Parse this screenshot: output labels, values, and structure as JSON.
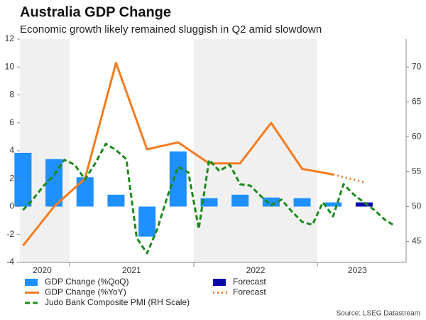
{
  "chart_data": {
    "type": "combo",
    "title": "Australia GDP Change",
    "subtitle": "Economic growth likely remained sluggish in Q2 amid slowdown",
    "source": "Source: LSEG Datastream",
    "xlim": [
      2020.6,
      2023.713
    ],
    "xticks": [
      {
        "value": 2020.78,
        "label": "2020"
      },
      {
        "value": 2021.5,
        "label": "2021"
      },
      {
        "value": 2022.5,
        "label": "2022"
      },
      {
        "value": 2023.32,
        "label": "2023"
      }
    ],
    "ylim": [
      -4,
      12
    ],
    "yticks": [
      -4,
      -2,
      0,
      2,
      4,
      6,
      8,
      10,
      12
    ],
    "y2lim": [
      42,
      74
    ],
    "y2ticks": [
      45,
      50,
      55,
      60,
      65,
      70
    ],
    "series": [
      {
        "name": "GDP Change (%QoQ)",
        "type": "bar",
        "color": "#1e90ff",
        "x": [
          2020.625,
          2020.875,
          2021.125,
          2021.375,
          2021.625,
          2021.875,
          2022.125,
          2022.375,
          2022.625,
          2022.875,
          2023.125
        ],
        "values": [
          3.85,
          3.4,
          2.1,
          0.85,
          -2.15,
          3.95,
          0.6,
          0.85,
          0.65,
          0.6,
          0.3
        ]
      },
      {
        "name": "Forecast",
        "type": "bar",
        "color": "#0a0aaa",
        "x": [
          2023.375
        ],
        "values": [
          0.3
        ]
      },
      {
        "name": "GDP Change (%YoY)",
        "type": "line",
        "style": "solid",
        "color": "#f47b20",
        "x": [
          2020.625,
          2020.875,
          2021.125,
          2021.375,
          2021.625,
          2021.875,
          2022.125,
          2022.375,
          2022.625,
          2022.875,
          2023.125
        ],
        "values": [
          -2.8,
          0.0,
          2.0,
          10.3,
          4.1,
          4.6,
          3.1,
          3.1,
          6.0,
          2.7,
          2.3
        ]
      },
      {
        "name": "Forecast",
        "type": "line",
        "style": "dotted",
        "color": "#f47b20",
        "x": [
          2023.125,
          2023.375
        ],
        "values": [
          2.3,
          1.75
        ]
      },
      {
        "name": "Judo Bank Composite PMI (RH Scale)",
        "type": "line",
        "style": "dashed",
        "color": "#1a8a1a",
        "axis": "y2",
        "x": [
          2020.625,
          2020.708,
          2020.792,
          2020.875,
          2020.958,
          2021.042,
          2021.125,
          2021.208,
          2021.292,
          2021.375,
          2021.458,
          2021.542,
          2021.625,
          2021.708,
          2021.792,
          2021.875,
          2021.958,
          2022.042,
          2022.125,
          2022.208,
          2022.292,
          2022.375,
          2022.458,
          2022.542,
          2022.625,
          2022.708,
          2022.792,
          2022.875,
          2022.958,
          2023.042,
          2023.125,
          2023.208,
          2023.292,
          2023.375,
          2023.458,
          2023.542,
          2023.625
        ],
        "values": [
          49.5,
          51.1,
          53.0,
          54.5,
          56.7,
          56.0,
          53.9,
          56.2,
          59.0,
          58.1,
          56.8,
          45.5,
          43.3,
          46.8,
          51.6,
          55.7,
          54.9,
          46.8,
          56.7,
          55.1,
          56.0,
          53.2,
          53.0,
          51.5,
          50.2,
          51.0,
          49.3,
          47.8,
          47.4,
          50.6,
          48.6,
          53.2,
          51.7,
          50.6,
          49.5,
          48.1,
          47.2
        ]
      }
    ]
  }
}
